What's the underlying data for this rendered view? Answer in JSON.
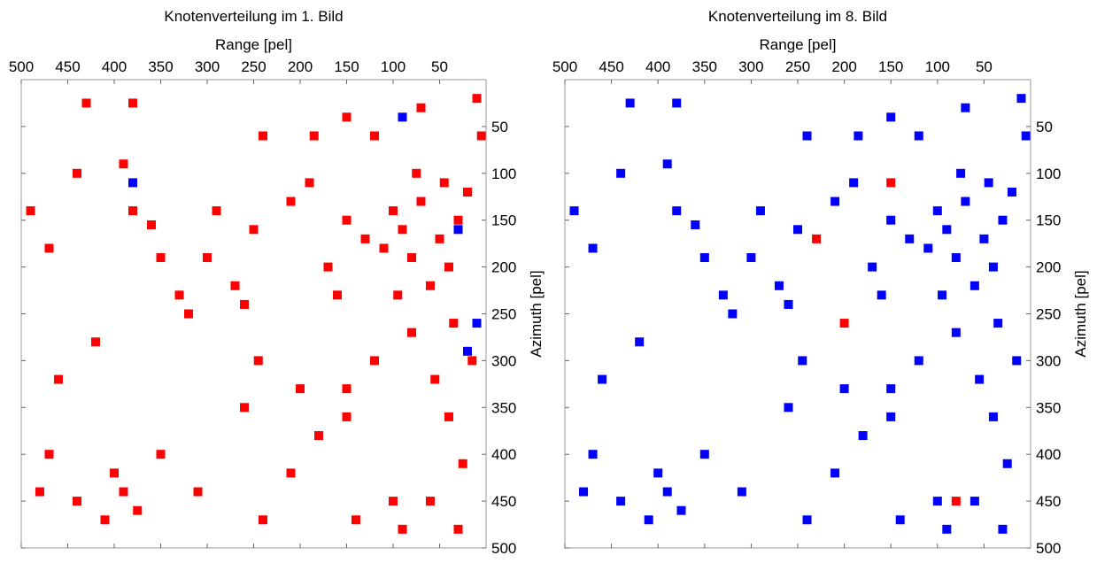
{
  "chart_data": [
    {
      "type": "scatter",
      "title": "Knotenverteilung im 1. Bild",
      "xlabel": "Range [pel]",
      "ylabel": "Azimuth [pel]",
      "xlim": [
        500,
        0
      ],
      "ylim": [
        500,
        0
      ],
      "xticks": [
        500,
        450,
        400,
        350,
        300,
        250,
        200,
        150,
        100,
        50
      ],
      "yticks": [
        50,
        100,
        150,
        200,
        250,
        300,
        350,
        400,
        450,
        500
      ],
      "series": [
        {
          "color": "#ff0000",
          "x": [
            30,
            50,
            70,
            90,
            40,
            20,
            60,
            80,
            100,
            110,
            45,
            75,
            95,
            130,
            150,
            35,
            15,
            55,
            40,
            25,
            60,
            30,
            80,
            120,
            150,
            160,
            170,
            190,
            185,
            240,
            210,
            250,
            260,
            270,
            245,
            320,
            330,
            300,
            350,
            360,
            380,
            390,
            380,
            430,
            440,
            470,
            490,
            420,
            460,
            470,
            400,
            390,
            375,
            410,
            440,
            480,
            350,
            310,
            240,
            210,
            180,
            150,
            140,
            100,
            90,
            200,
            260,
            290,
            5,
            10,
            70,
            120,
            150
          ],
          "values": [
            150,
            170,
            130,
            160,
            200,
            120,
            220,
            190,
            140,
            180,
            110,
            100,
            230,
            170,
            150,
            260,
            300,
            320,
            360,
            410,
            450,
            480,
            270,
            300,
            330,
            230,
            200,
            110,
            60,
            60,
            130,
            160,
            240,
            220,
            300,
            250,
            230,
            190,
            190,
            155,
            140,
            90,
            25,
            25,
            100,
            180,
            140,
            280,
            320,
            400,
            420,
            440,
            460,
            470,
            450,
            440,
            400,
            440,
            470,
            420,
            380,
            360,
            470,
            450,
            480,
            330,
            350,
            140,
            60,
            20,
            30,
            60,
            40
          ]
        },
        {
          "color": "#0000ff",
          "x": [
            90,
            380,
            10,
            20,
            30
          ],
          "values": [
            40,
            110,
            260,
            290,
            160
          ]
        }
      ]
    },
    {
      "type": "scatter",
      "title": "Knotenverteilung im 8. Bild",
      "xlabel": "Range [pel]",
      "ylabel": "Azimuth [pel]",
      "xlim": [
        500,
        0
      ],
      "ylim": [
        500,
        0
      ],
      "xticks": [
        500,
        450,
        400,
        350,
        300,
        250,
        200,
        150,
        100,
        50
      ],
      "yticks": [
        50,
        100,
        150,
        200,
        250,
        300,
        350,
        400,
        450,
        500
      ],
      "series": [
        {
          "color": "#0000ff",
          "x": [
            30,
            50,
            70,
            90,
            40,
            20,
            60,
            80,
            100,
            110,
            45,
            75,
            95,
            130,
            150,
            35,
            15,
            55,
            40,
            25,
            60,
            30,
            80,
            120,
            150,
            160,
            170,
            190,
            185,
            240,
            210,
            250,
            260,
            270,
            245,
            320,
            330,
            300,
            350,
            360,
            380,
            390,
            380,
            430,
            440,
            470,
            490,
            420,
            460,
            470,
            400,
            390,
            375,
            410,
            440,
            480,
            350,
            310,
            240,
            210,
            180,
            150,
            140,
            100,
            90,
            200,
            260,
            290,
            5,
            10,
            70,
            120,
            150
          ],
          "values": [
            150,
            170,
            130,
            160,
            200,
            120,
            220,
            190,
            140,
            180,
            110,
            100,
            230,
            170,
            150,
            260,
            300,
            320,
            360,
            410,
            450,
            480,
            270,
            300,
            330,
            230,
            200,
            110,
            60,
            60,
            130,
            160,
            240,
            220,
            300,
            250,
            230,
            190,
            190,
            155,
            140,
            90,
            25,
            25,
            100,
            180,
            140,
            280,
            320,
            400,
            420,
            440,
            460,
            470,
            450,
            440,
            400,
            440,
            470,
            420,
            380,
            360,
            470,
            450,
            480,
            330,
            350,
            140,
            60,
            20,
            30,
            60,
            40
          ]
        },
        {
          "color": "#ff0000",
          "x": [
            200,
            230,
            150,
            80
          ],
          "values": [
            260,
            170,
            110,
            450
          ]
        }
      ]
    }
  ]
}
